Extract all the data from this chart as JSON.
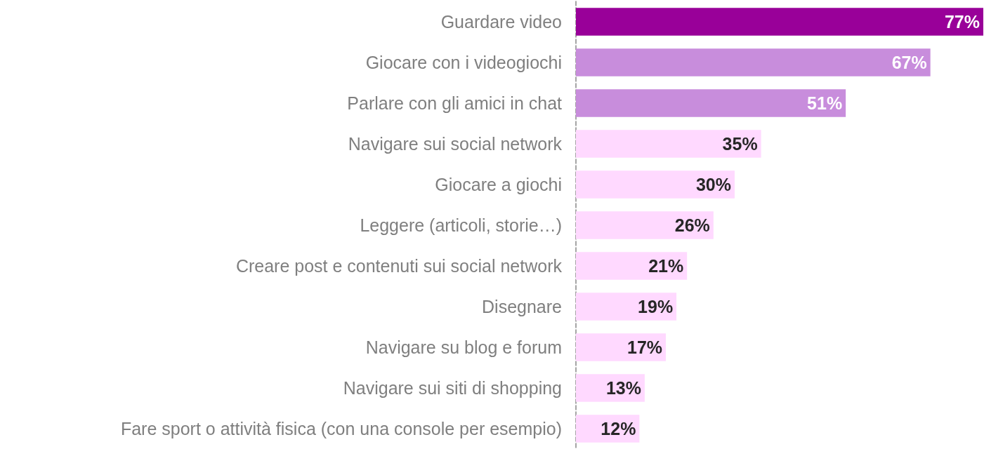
{
  "chart_data": {
    "type": "bar",
    "orientation": "horizontal",
    "value_labels": [
      "77%",
      "67%",
      "51%",
      "35%",
      "30%",
      "26%",
      "21%",
      "19%",
      "17%",
      "13%",
      "12%"
    ],
    "categories": [
      "Guardare video",
      "Giocare con i videogiochi",
      "Parlare con gli amici in chat",
      "Navigare sui social network",
      "Giocare a giochi",
      "Leggere (articoli, storie…)",
      "Creare post e contenuti sui social network",
      "Disegnare",
      "Navigare su blog e forum",
      "Navigare sui siti di shopping",
      "Fare sport o attività fisica (con una console per esempio)"
    ],
    "values": [
      77,
      67,
      51,
      35,
      30,
      26,
      21,
      19,
      17,
      13,
      12
    ],
    "colors": [
      "#990099",
      "#c88ddc",
      "#c88ddc",
      "#ffd9ff",
      "#ffd9ff",
      "#ffd9ff",
      "#ffd9ff",
      "#ffd9ff",
      "#ffd9ff",
      "#ffd9ff",
      "#ffd9ff"
    ]
  }
}
